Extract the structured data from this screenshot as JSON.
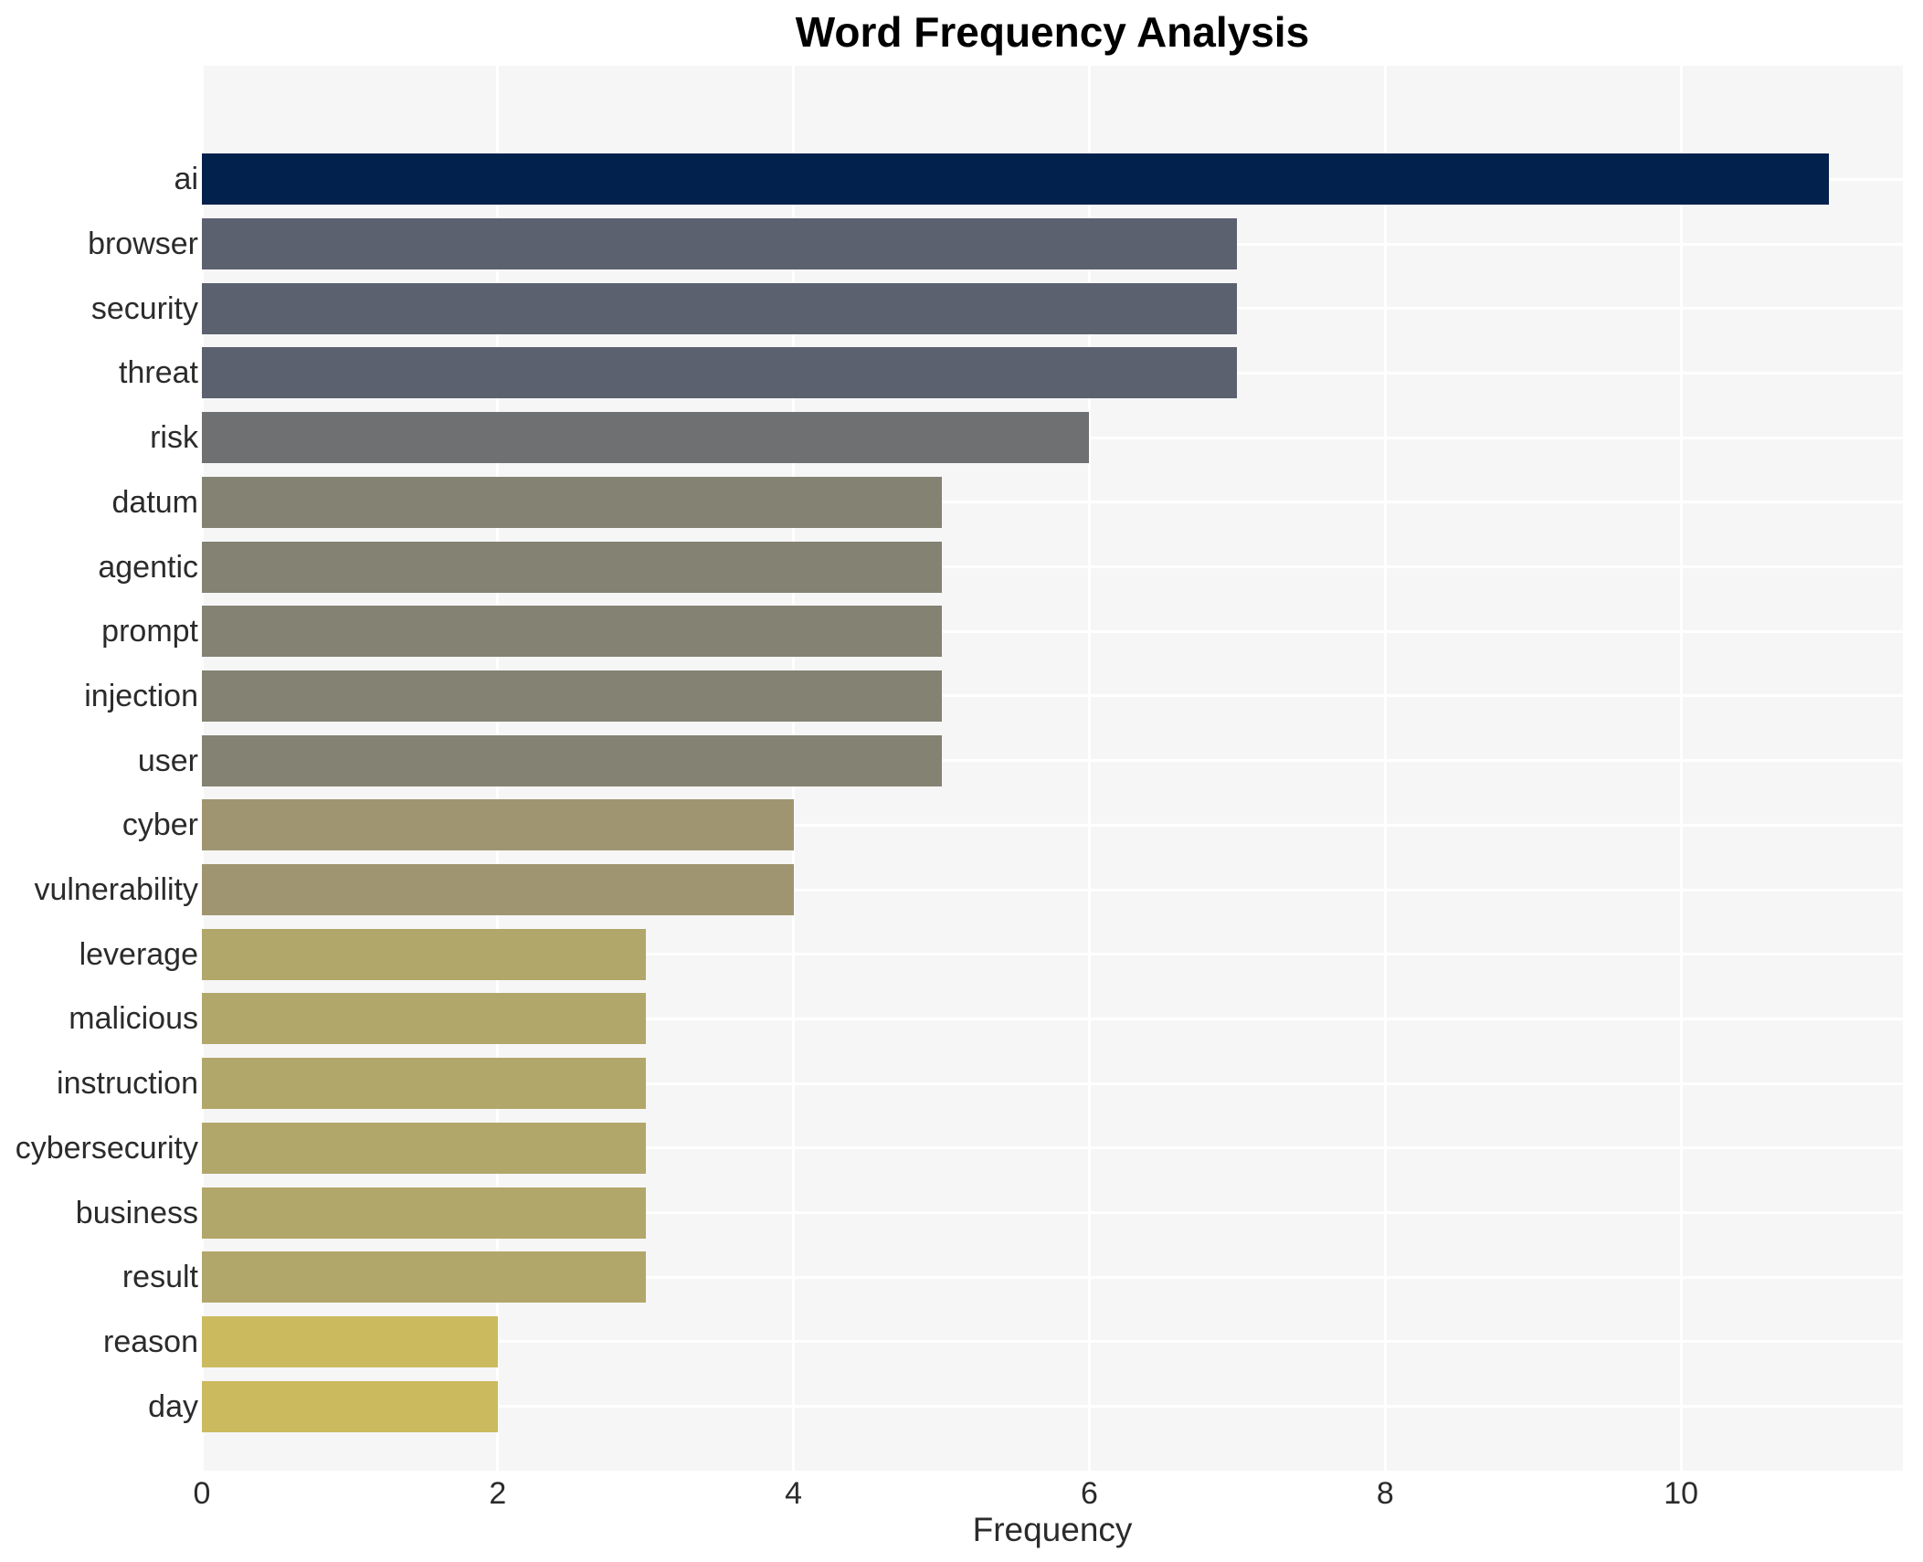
{
  "chart_data": {
    "type": "bar",
    "orientation": "horizontal",
    "title": "Word Frequency Analysis",
    "xlabel": "Frequency",
    "ylabel": "",
    "categories": [
      "ai",
      "browser",
      "security",
      "threat",
      "risk",
      "datum",
      "agentic",
      "prompt",
      "injection",
      "user",
      "cyber",
      "vulnerability",
      "leverage",
      "malicious",
      "instruction",
      "cybersecurity",
      "business",
      "result",
      "reason",
      "day"
    ],
    "values": [
      11,
      7,
      7,
      7,
      6,
      5,
      5,
      5,
      5,
      5,
      4,
      4,
      3,
      3,
      3,
      3,
      3,
      3,
      2,
      2
    ],
    "bar_colors": [
      "#03214d",
      "#5c6170",
      "#5c6170",
      "#5c6170",
      "#6e7072",
      "#848272",
      "#848272",
      "#848272",
      "#848272",
      "#848272",
      "#9f9571",
      "#9f9571",
      "#b2a76a",
      "#b2a76a",
      "#b2a76a",
      "#b2a76a",
      "#b2a76a",
      "#b2a76a",
      "#ccba5e",
      "#ccba5e"
    ],
    "xlim": [
      0,
      11.5
    ],
    "xticks": [
      0,
      2,
      4,
      6,
      8,
      10
    ],
    "grid": true,
    "legend": false,
    "plot_background": "#f6f6f7",
    "grid_color": "#ffffff",
    "figure_background": "#ffffff"
  }
}
